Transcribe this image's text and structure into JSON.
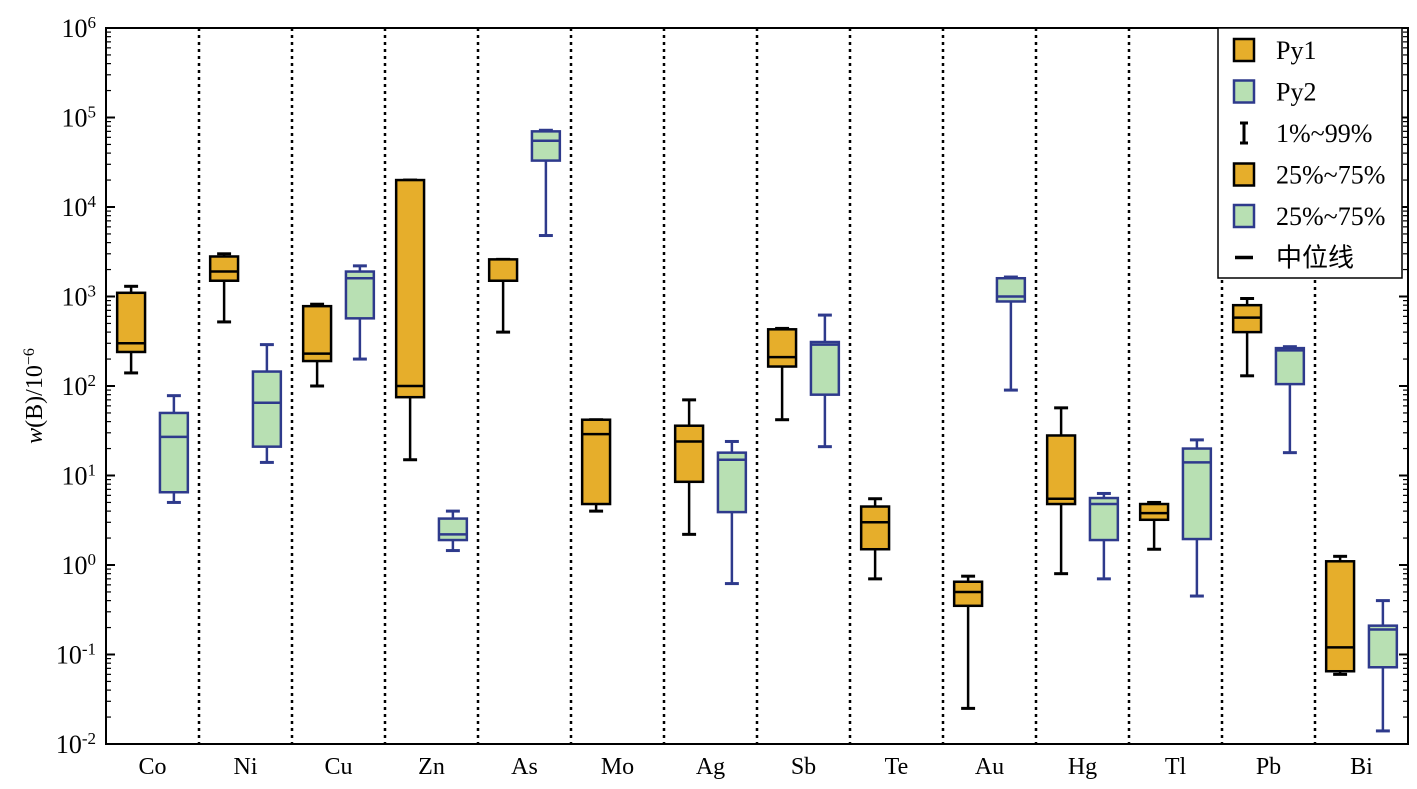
{
  "chart_data": {
    "type": "box",
    "ylabel_prefix": "w",
    "ylabel_rest": "(B)/10",
    "ylabel_exp": "−6",
    "yscale": "log",
    "ylim": [
      0.01,
      1000000
    ],
    "yticks": [
      {
        "base": "10",
        "exp": "-2"
      },
      {
        "base": "10",
        "exp": "-1"
      },
      {
        "base": "10",
        "exp": "0"
      },
      {
        "base": "10",
        "exp": "1"
      },
      {
        "base": "10",
        "exp": "2"
      },
      {
        "base": "10",
        "exp": "3"
      },
      {
        "base": "10",
        "exp": "4"
      },
      {
        "base": "10",
        "exp": "5"
      },
      {
        "base": "10",
        "exp": "6"
      }
    ],
    "categories": [
      "Co",
      "Ni",
      "Cu",
      "Zn",
      "As",
      "Mo",
      "Ag",
      "Sb",
      "Te",
      "Au",
      "Hg",
      "Tl",
      "Pb",
      "Bi"
    ],
    "series": [
      {
        "name": "Py1",
        "fill": "#E6AE2B",
        "stroke": "#000000",
        "boxes": [
          {
            "category": "Co",
            "whisker_low": 140,
            "q1": 240,
            "median": 300,
            "q3": 1100,
            "whisker_high": 1300
          },
          {
            "category": "Ni",
            "whisker_low": 520,
            "q1": 1500,
            "median": 1900,
            "q3": 2800,
            "whisker_high": 3000
          },
          {
            "category": "Cu",
            "whisker_low": 100,
            "q1": 190,
            "median": 230,
            "q3": 780,
            "whisker_high": 820
          },
          {
            "category": "Zn",
            "whisker_low": 15,
            "q1": 75,
            "median": 100,
            "q3": 20000,
            "whisker_high": 20000
          },
          {
            "category": "As",
            "whisker_low": 400,
            "q1": 1500,
            "median": 1500,
            "q3": 2600,
            "whisker_high": 2600
          },
          {
            "category": "Mo",
            "whisker_low": 4,
            "q1": 4.8,
            "median": 29,
            "q3": 42,
            "whisker_high": 42
          },
          {
            "category": "Ag",
            "whisker_low": 2.2,
            "q1": 8.5,
            "median": 24,
            "q3": 36,
            "whisker_high": 70
          },
          {
            "category": "Sb",
            "whisker_low": 42,
            "q1": 165,
            "median": 210,
            "q3": 430,
            "whisker_high": 440
          },
          {
            "category": "Te",
            "whisker_low": 0.7,
            "q1": 1.5,
            "median": 3,
            "q3": 4.5,
            "whisker_high": 5.5
          },
          {
            "category": "Au",
            "whisker_low": 0.025,
            "q1": 0.35,
            "median": 0.5,
            "q3": 0.65,
            "whisker_high": 0.75
          },
          {
            "category": "Hg",
            "whisker_low": 0.8,
            "q1": 4.8,
            "median": 5.5,
            "q3": 28,
            "whisker_high": 57
          },
          {
            "category": "Tl",
            "whisker_low": 1.5,
            "q1": 3.2,
            "median": 3.8,
            "q3": 4.8,
            "whisker_high": 5
          },
          {
            "category": "Pb",
            "whisker_low": 130,
            "q1": 400,
            "median": 580,
            "q3": 800,
            "whisker_high": 950
          },
          {
            "category": "Bi",
            "whisker_low": 0.06,
            "q1": 0.065,
            "median": 0.12,
            "q3": 1.1,
            "whisker_high": 1.25
          }
        ]
      },
      {
        "name": "Py2",
        "fill": "#B8E0B3",
        "stroke": "#2E3A8C",
        "boxes": [
          {
            "category": "Co",
            "whisker_low": 5,
            "q1": 6.5,
            "median": 27,
            "q3": 50,
            "whisker_high": 78
          },
          {
            "category": "Ni",
            "whisker_low": 14,
            "q1": 21,
            "median": 65,
            "q3": 145,
            "whisker_high": 290
          },
          {
            "category": "Cu",
            "whisker_low": 200,
            "q1": 570,
            "median": 1600,
            "q3": 1900,
            "whisker_high": 2200
          },
          {
            "category": "Zn",
            "whisker_low": 1.45,
            "q1": 1.9,
            "median": 2.2,
            "q3": 3.3,
            "whisker_high": 4
          },
          {
            "category": "As",
            "whisker_low": 4800,
            "q1": 33000,
            "median": 55000,
            "q3": 70000,
            "whisker_high": 72000
          },
          {
            "category": "Ag",
            "whisker_low": 0.62,
            "q1": 3.9,
            "median": 15,
            "q3": 18,
            "whisker_high": 24
          },
          {
            "category": "Sb",
            "whisker_low": 21,
            "q1": 80,
            "median": 290,
            "q3": 310,
            "whisker_high": 620
          },
          {
            "category": "Au",
            "whisker_low": 90,
            "q1": 880,
            "median": 1000,
            "q3": 1600,
            "whisker_high": 1650
          },
          {
            "category": "Hg",
            "whisker_low": 0.7,
            "q1": 1.9,
            "median": 4.8,
            "q3": 5.6,
            "whisker_high": 6.3
          },
          {
            "category": "Tl",
            "whisker_low": 0.45,
            "q1": 1.95,
            "median": 14,
            "q3": 20,
            "whisker_high": 25
          },
          {
            "category": "Pb",
            "whisker_low": 18,
            "q1": 105,
            "median": 250,
            "q3": 265,
            "whisker_high": 275
          },
          {
            "category": "Bi",
            "whisker_low": 0.014,
            "q1": 0.072,
            "median": 0.19,
            "q3": 0.21,
            "whisker_high": 0.4
          }
        ]
      }
    ],
    "legend": {
      "placement": "top-right",
      "entries": [
        {
          "symbol": "box",
          "color_key": "Py1",
          "label": "Py1"
        },
        {
          "symbol": "box",
          "color_key": "Py2",
          "label": "Py2"
        },
        {
          "symbol": "whisker",
          "label": "1%~99%"
        },
        {
          "symbol": "box",
          "color_key": "Py1",
          "label": "25%~75%"
        },
        {
          "symbol": "box",
          "color_key": "Py2",
          "label": "25%~75%"
        },
        {
          "symbol": "line",
          "label": "中位线"
        }
      ]
    },
    "separators": "dotted",
    "grid": false
  }
}
